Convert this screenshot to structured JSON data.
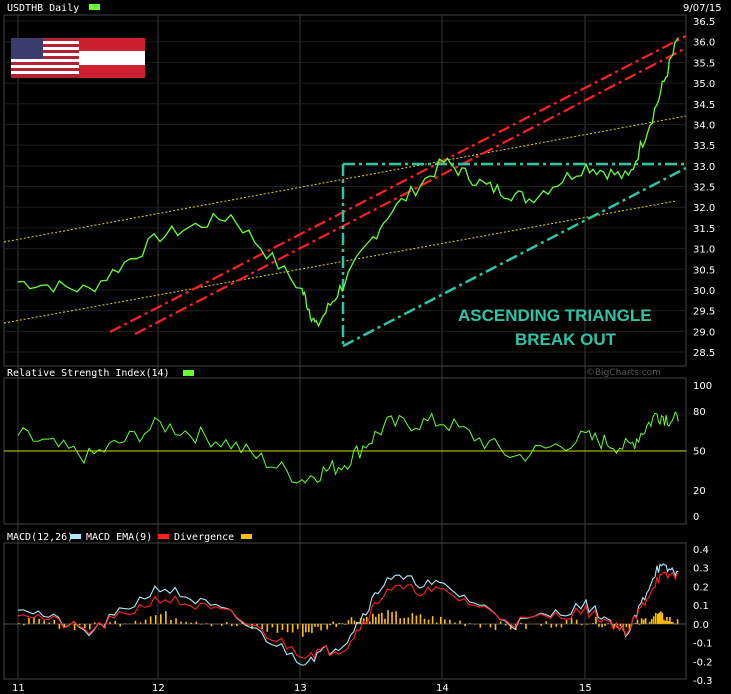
{
  "panels": {
    "price": {
      "title": "USDTHB Daily",
      "date": "9/07/15",
      "ticks": [
        "36.5",
        "36.0",
        "35.5",
        "35.0",
        "34.5",
        "34.0",
        "33.5",
        "33.0",
        "32.5",
        "32.0",
        "31.5",
        "31.0",
        "30.5",
        "30.0",
        "29.5",
        "29.0",
        "28.5"
      ],
      "annotation_line1": "ASCENDING TRIANGLE",
      "annotation_line2": "BREAK OUT"
    },
    "rsi": {
      "title": "Relative Strength Index(14)",
      "watermark": "©BigCharts.com",
      "ticks": [
        "100",
        "80",
        "50",
        "20",
        "0"
      ]
    },
    "macd": {
      "legend_macd": "MACD(12,26)",
      "legend_ema": "MACD EMA(9)",
      "legend_div": "Divergence",
      "ticks": [
        "0.4",
        "0.3",
        "0.2",
        "0.1",
        "0.0",
        "-0.1",
        "-0.2",
        "-0.3"
      ]
    },
    "xaxis": {
      "labels": [
        "11",
        "12",
        "13",
        "14",
        "15"
      ]
    }
  },
  "colors": {
    "price_line": "#66ff33",
    "trend_yellow": "#e8d800",
    "trend_red": "#ff2020",
    "triangle_teal": "#2ec4a6",
    "rsi_line": "#66ff33",
    "macd_line": "#aee8ff",
    "ema_line": "#ff2020",
    "divergence": "#ffc000",
    "grid": "#3a3a3a"
  },
  "chart_data": [
    {
      "type": "line",
      "title": "USDTHB Daily",
      "x": [
        "11",
        "11.5",
        "12",
        "12.5",
        "13",
        "13.1",
        "13.3",
        "13.6",
        "14",
        "14.3",
        "14.6",
        "15",
        "15.3",
        "15.5",
        "15.65"
      ],
      "y": [
        30.2,
        30.0,
        31.3,
        31.8,
        30.0,
        29.1,
        30.2,
        31.8,
        33.1,
        32.5,
        32.2,
        33.0,
        32.7,
        34.5,
        36.1
      ],
      "ylim": [
        28.5,
        36.5
      ],
      "annotations": [
        "ASCENDING TRIANGLE",
        "BREAK OUT"
      ]
    },
    {
      "type": "line",
      "title": "Relative Strength Index(14)",
      "x": [
        "11",
        "11.5",
        "12",
        "12.5",
        "13",
        "13.3",
        "13.6",
        "14",
        "14.5",
        "15",
        "15.3",
        "15.5",
        "15.65"
      ],
      "y": [
        62,
        45,
        70,
        55,
        28,
        40,
        70,
        72,
        45,
        60,
        52,
        78,
        72
      ],
      "ylim": [
        0,
        100
      ]
    },
    {
      "type": "line",
      "title": "MACD(12,26)",
      "series": [
        {
          "name": "MACD(12,26)",
          "x": [
            "11",
            "11.5",
            "12",
            "12.5",
            "13",
            "13.3",
            "13.6",
            "14",
            "14.5",
            "15",
            "15.3",
            "15.5",
            "15.65"
          ],
          "values": [
            0.1,
            -0.05,
            0.2,
            0.05,
            -0.2,
            -0.1,
            0.25,
            0.2,
            0.0,
            0.1,
            -0.05,
            0.3,
            0.28
          ]
        },
        {
          "name": "MACD EMA(9)",
          "x": [
            "11",
            "11.5",
            "12",
            "12.5",
            "13",
            "13.3",
            "13.6",
            "14",
            "14.5",
            "15",
            "15.3",
            "15.5",
            "15.65"
          ],
          "values": [
            0.08,
            -0.03,
            0.15,
            0.06,
            -0.15,
            -0.12,
            0.2,
            0.18,
            0.02,
            0.08,
            -0.03,
            0.25,
            0.28
          ]
        },
        {
          "name": "Divergence",
          "x": [
            "11",
            "11.5",
            "12",
            "12.5",
            "13",
            "13.3",
            "13.6",
            "14",
            "14.5",
            "15",
            "15.3",
            "15.5",
            "15.65"
          ],
          "values": [
            0.02,
            -0.02,
            0.05,
            -0.01,
            -0.05,
            0.02,
            0.05,
            0.02,
            -0.02,
            0.02,
            -0.02,
            0.05,
            0.0
          ]
        }
      ],
      "ylim": [
        -0.3,
        0.4
      ]
    }
  ]
}
